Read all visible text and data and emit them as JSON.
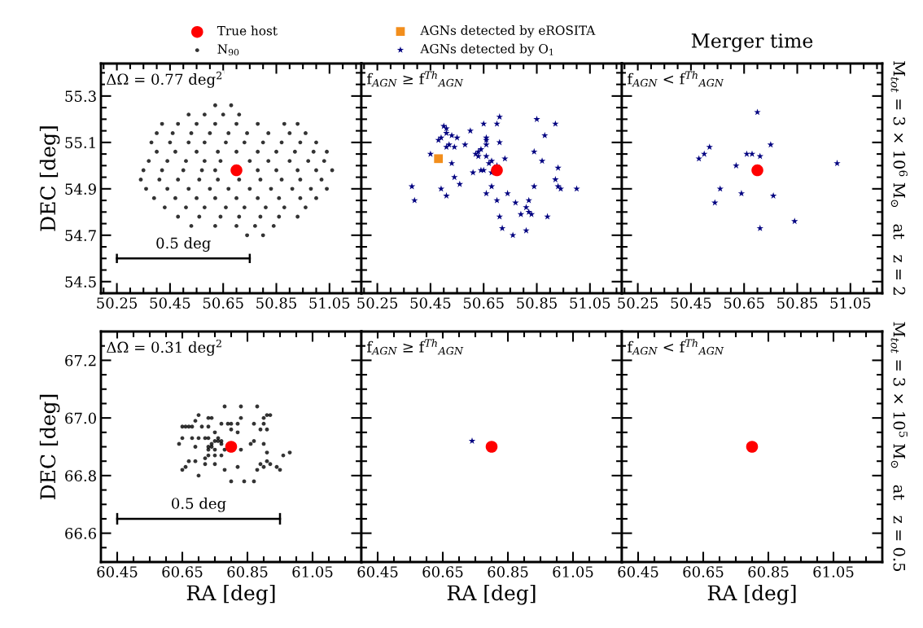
{
  "chart_data": [
    {
      "type": "scatter",
      "ylabel": "DEC [deg]",
      "legend": "top",
      "grid": false,
      "annotations": [
        "ΔΩ = 0.77 deg$^{2}$",
        {
          "text": "0.5 deg",
          "x": 50.5,
          "y": 54.6
        }
      ],
      "xlim": [
        50.19,
        51.17
      ],
      "ylim": [
        54.45,
        55.44
      ],
      "xticks": [
        50.25,
        50.45,
        50.65,
        50.85,
        51.05,
        {
          "value": 50.2,
          "label": null
        },
        {
          "value": 50.3,
          "label": null
        },
        {
          "value": 50.35,
          "label": null
        },
        {
          "value": 50.4,
          "label": null
        },
        {
          "value": 50.5,
          "label": null
        },
        {
          "value": 50.55,
          "label": null
        },
        {
          "value": 50.6,
          "label": null
        },
        {
          "value": 50.7,
          "label": null
        },
        {
          "value": 50.75,
          "label": null
        },
        {
          "value": 50.8,
          "label": null
        },
        {
          "value": 50.9,
          "label": null
        },
        {
          "value": 50.95,
          "label": null
        },
        {
          "value": 51.0,
          "label": null
        },
        {
          "value": 51.1,
          "label": null
        },
        {
          "value": 51.15,
          "label": null
        }
      ],
      "yticks": [
        54.5,
        54.7,
        54.9,
        55.1,
        55.3,
        {
          "value": 54.55,
          "label": null
        },
        {
          "value": 54.6,
          "label": null
        },
        {
          "value": 54.65,
          "label": null
        },
        {
          "value": 54.75,
          "label": null
        },
        {
          "value": 54.8,
          "label": null
        },
        {
          "value": 54.85,
          "label": null
        },
        {
          "value": 54.95,
          "label": null
        },
        {
          "value": 55.0,
          "label": null
        },
        {
          "value": 55.05,
          "label": null
        },
        {
          "value": 55.15,
          "label": null
        },
        {
          "value": 55.2,
          "label": null
        },
        {
          "value": 55.25,
          "label": null
        },
        {
          "value": 55.35,
          "label": null
        },
        {
          "value": 55.4,
          "label": null
        }
      ],
      "series": [
        {
          "name": "True host",
          "color": "#ff0000",
          "marker": "circle",
          "x": [
            50.7
          ],
          "values": [
            54.98
          ]
        },
        {
          "name": "N$_{90}$",
          "color": "#000000",
          "marker": "circle",
          "x": [
            50.62,
            50.68,
            50.52,
            50.58,
            50.65,
            50.71,
            50.42,
            50.48,
            50.55,
            50.62,
            50.7,
            50.78,
            50.88,
            50.93,
            50.4,
            50.46,
            50.53,
            50.6,
            50.67,
            50.74,
            50.82,
            50.9,
            50.96,
            50.38,
            50.45,
            50.52,
            50.58,
            50.66,
            50.73,
            50.8,
            50.87,
            50.94,
            51.0,
            50.4,
            50.47,
            50.55,
            50.63,
            50.7,
            50.78,
            50.85,
            50.92,
            50.99,
            51.04,
            50.37,
            50.44,
            50.51,
            50.58,
            50.64,
            50.75,
            50.82,
            50.9,
            50.97,
            51.03,
            50.35,
            50.42,
            50.5,
            50.57,
            50.62,
            50.78,
            50.85,
            50.93,
            51.0,
            51.06,
            50.34,
            50.41,
            50.48,
            50.56,
            50.63,
            50.71,
            50.79,
            50.87,
            50.94,
            51.02,
            50.36,
            50.44,
            50.52,
            50.6,
            50.67,
            50.75,
            50.83,
            50.91,
            50.98,
            51.04,
            50.39,
            50.47,
            50.55,
            50.62,
            50.7,
            50.78,
            50.86,
            50.94,
            51.0,
            50.43,
            50.51,
            50.58,
            50.66,
            50.73,
            50.81,
            50.88,
            50.96,
            50.48,
            50.56,
            50.64,
            50.71,
            50.79,
            50.86,
            50.93,
            50.53,
            50.62,
            50.7,
            50.77,
            50.84,
            50.74,
            50.8
          ],
          "values": [
            55.26,
            55.26,
            55.22,
            55.22,
            55.22,
            55.22,
            55.18,
            55.18,
            55.18,
            55.18,
            55.18,
            55.18,
            55.18,
            55.18,
            55.14,
            55.14,
            55.14,
            55.14,
            55.14,
            55.14,
            55.14,
            55.14,
            55.14,
            55.1,
            55.1,
            55.1,
            55.1,
            55.1,
            55.1,
            55.1,
            55.1,
            55.1,
            55.1,
            55.06,
            55.06,
            55.06,
            55.06,
            55.06,
            55.06,
            55.06,
            55.06,
            55.06,
            55.06,
            55.02,
            55.02,
            55.02,
            55.02,
            55.02,
            55.02,
            55.02,
            55.02,
            55.02,
            55.02,
            54.98,
            54.98,
            54.98,
            54.98,
            54.98,
            54.98,
            54.98,
            54.98,
            54.98,
            54.98,
            54.94,
            54.94,
            54.94,
            54.94,
            54.94,
            54.94,
            54.94,
            54.94,
            54.94,
            54.94,
            54.9,
            54.9,
            54.9,
            54.9,
            54.9,
            54.9,
            54.9,
            54.9,
            54.9,
            54.9,
            54.86,
            54.86,
            54.86,
            54.86,
            54.86,
            54.86,
            54.86,
            54.86,
            54.86,
            54.82,
            54.82,
            54.82,
            54.82,
            54.82,
            54.82,
            54.82,
            54.82,
            54.78,
            54.78,
            54.78,
            54.78,
            54.78,
            54.78,
            54.78,
            54.74,
            54.74,
            54.74,
            54.74,
            54.74,
            54.7,
            54.7
          ]
        },
        {
          "type": "line",
          "color": "#000000",
          "marker": "none",
          "x": [
            50.25,
            50.75
          ],
          "values": [
            54.6,
            54.6
          ],
          "errors": [
            0.02,
            0.02
          ]
        }
      ]
    },
    {
      "type": "scatter",
      "legend": "top",
      "grid": false,
      "tick_labels": "x",
      "annotations": [
        "f$_{AGN}$ ≥ f$^{Th}$$_{AGN}$"
      ],
      "xlim": [
        50.19,
        51.17
      ],
      "ylim": [
        54.45,
        55.44
      ],
      "xticks": [
        50.25,
        50.45,
        50.65,
        50.85,
        51.05,
        {
          "value": 50.2,
          "label": null
        },
        {
          "value": 50.3,
          "label": null
        },
        {
          "value": 50.35,
          "label": null
        },
        {
          "value": 50.4,
          "label": null
        },
        {
          "value": 50.5,
          "label": null
        },
        {
          "value": 50.55,
          "label": null
        },
        {
          "value": 50.6,
          "label": null
        },
        {
          "value": 50.7,
          "label": null
        },
        {
          "value": 50.75,
          "label": null
        },
        {
          "value": 50.8,
          "label": null
        },
        {
          "value": 50.9,
          "label": null
        },
        {
          "value": 50.95,
          "label": null
        },
        {
          "value": 51.0,
          "label": null
        },
        {
          "value": 51.1,
          "label": null
        },
        {
          "value": 51.15,
          "label": null
        }
      ],
      "yticks": [
        54.5,
        54.7,
        54.9,
        55.1,
        55.3,
        {
          "value": 54.55,
          "label": null
        },
        {
          "value": 54.6,
          "label": null
        },
        {
          "value": 54.65,
          "label": null
        },
        {
          "value": 54.75,
          "label": null
        },
        {
          "value": 54.8,
          "label": null
        },
        {
          "value": 54.85,
          "label": null
        },
        {
          "value": 54.95,
          "label": null
        },
        {
          "value": 55.0,
          "label": null
        },
        {
          "value": 55.05,
          "label": null
        },
        {
          "value": 55.15,
          "label": null
        },
        {
          "value": 55.2,
          "label": null
        },
        {
          "value": 55.25,
          "label": null
        },
        {
          "value": 55.35,
          "label": null
        },
        {
          "value": 55.4,
          "label": null
        }
      ],
      "series": [
        {
          "color": "#ff0000",
          "marker": "circle",
          "x": [
            50.7
          ],
          "values": [
            54.98
          ]
        },
        {
          "name": "AGNs detected by eROSITA",
          "color": "#f28e1c",
          "marker": "square",
          "x": [
            50.48
          ],
          "values": [
            55.03
          ]
        },
        {
          "name": "AGNs detected by O$_{1}$",
          "color": "#000080",
          "marker": "star",
          "x": [
            50.71,
            50.85,
            50.92,
            50.5,
            50.51,
            50.65,
            50.7,
            50.6,
            50.51,
            50.88,
            50.53,
            50.48,
            50.49,
            50.55,
            50.66,
            50.66,
            50.71,
            50.66,
            50.58,
            50.51,
            50.52,
            50.54,
            50.64,
            50.63,
            50.84,
            50.45,
            50.62,
            50.66,
            50.63,
            50.73,
            50.68,
            50.87,
            50.53,
            50.67,
            50.7,
            50.93,
            50.61,
            50.64,
            50.65,
            50.68,
            50.92,
            50.54,
            50.56,
            50.38,
            50.49,
            50.84,
            50.93,
            50.94,
            51.0,
            50.68,
            50.39,
            50.51,
            50.66,
            50.74,
            50.7,
            50.77,
            50.82,
            50.81,
            50.82,
            50.79,
            50.83,
            50.89,
            50.71,
            50.72,
            50.81,
            50.76
          ],
          "values": [
            55.21,
            55.2,
            55.18,
            55.17,
            55.16,
            55.18,
            55.18,
            55.15,
            55.14,
            55.13,
            55.13,
            55.11,
            55.12,
            55.12,
            55.12,
            55.11,
            55.1,
            55.09,
            55.09,
            55.08,
            55.09,
            55.08,
            55.07,
            55.06,
            55.06,
            55.05,
            55.05,
            55.04,
            55.04,
            55.03,
            55.02,
            55.02,
            55.01,
            55.01,
            55.0,
            54.99,
            54.97,
            54.98,
            54.98,
            54.97,
            54.94,
            54.95,
            54.92,
            54.91,
            54.9,
            54.91,
            54.91,
            54.9,
            54.9,
            54.91,
            54.85,
            54.87,
            54.88,
            54.88,
            54.85,
            54.84,
            54.85,
            54.82,
            54.8,
            54.79,
            54.79,
            54.78,
            54.78,
            54.73,
            54.72,
            54.7
          ]
        }
      ]
    },
    {
      "type": "scatter",
      "title": "Merger time",
      "grid": false,
      "tick_labels": "x",
      "annotations": [
        "f$_{AGN}$ < f$^{Th}$$_{AGN}$"
      ],
      "y2label": "M$_{tot}$ = 3 × 10$^{6}$ M$_{⊙}$   at   z = 2",
      "xlim": [
        50.19,
        51.17
      ],
      "ylim": [
        54.45,
        55.44
      ],
      "xticks": [
        50.25,
        50.45,
        50.65,
        50.85,
        51.05,
        {
          "value": 50.2,
          "label": null
        },
        {
          "value": 50.3,
          "label": null
        },
        {
          "value": 50.35,
          "label": null
        },
        {
          "value": 50.4,
          "label": null
        },
        {
          "value": 50.5,
          "label": null
        },
        {
          "value": 50.55,
          "label": null
        },
        {
          "value": 50.6,
          "label": null
        },
        {
          "value": 50.7,
          "label": null
        },
        {
          "value": 50.75,
          "label": null
        },
        {
          "value": 50.8,
          "label": null
        },
        {
          "value": 50.9,
          "label": null
        },
        {
          "value": 50.95,
          "label": null
        },
        {
          "value": 51.0,
          "label": null
        },
        {
          "value": 51.1,
          "label": null
        },
        {
          "value": 51.15,
          "label": null
        }
      ],
      "yticks": [
        54.5,
        54.7,
        54.9,
        55.1,
        55.3,
        {
          "value": 54.55,
          "label": null
        },
        {
          "value": 54.6,
          "label": null
        },
        {
          "value": 54.65,
          "label": null
        },
        {
          "value": 54.75,
          "label": null
        },
        {
          "value": 54.8,
          "label": null
        },
        {
          "value": 54.85,
          "label": null
        },
        {
          "value": 54.95,
          "label": null
        },
        {
          "value": 55.0,
          "label": null
        },
        {
          "value": 55.05,
          "label": null
        },
        {
          "value": 55.15,
          "label": null
        },
        {
          "value": 55.2,
          "label": null
        },
        {
          "value": 55.25,
          "label": null
        },
        {
          "value": 55.35,
          "label": null
        },
        {
          "value": 55.4,
          "label": null
        }
      ],
      "series": [
        {
          "color": "#ff0000",
          "marker": "circle",
          "x": [
            50.7
          ],
          "values": [
            54.98
          ]
        },
        {
          "color": "#000080",
          "marker": "star",
          "x": [
            50.7,
            50.52,
            50.5,
            50.48,
            50.66,
            50.68,
            50.71,
            50.75,
            50.62,
            51.0,
            50.56,
            50.64,
            50.76,
            50.54,
            50.84,
            50.71
          ],
          "values": [
            55.23,
            55.08,
            55.05,
            55.03,
            55.05,
            55.05,
            55.04,
            55.09,
            55.0,
            55.01,
            54.9,
            54.88,
            54.87,
            54.84,
            54.76,
            54.73
          ]
        }
      ]
    },
    {
      "type": "scatter",
      "xlabel": "RA [deg]",
      "ylabel": "DEC [deg]",
      "grid": false,
      "annotations": [
        "ΔΩ = 0.31 deg$^{2}$",
        {
          "text": "0.5 deg",
          "x": 60.7,
          "y": 66.65
        }
      ],
      "xlim": [
        60.4,
        61.2
      ],
      "ylim": [
        66.5,
        67.3
      ],
      "xticks": [
        60.45,
        60.65,
        60.85,
        61.05,
        {
          "value": 60.5,
          "label": null
        },
        {
          "value": 60.55,
          "label": null
        },
        {
          "value": 60.6,
          "label": null
        },
        {
          "value": 60.7,
          "label": null
        },
        {
          "value": 60.75,
          "label": null
        },
        {
          "value": 60.8,
          "label": null
        },
        {
          "value": 60.9,
          "label": null
        },
        {
          "value": 60.95,
          "label": null
        },
        {
          "value": 61.0,
          "label": null
        },
        {
          "value": 61.1,
          "label": null
        },
        {
          "value": 61.15,
          "label": null
        }
      ],
      "yticks": [
        66.6,
        66.8,
        {
          "value": 67.0,
          "label": "67.0"
        },
        67.2,
        {
          "value": 66.55,
          "label": null
        },
        {
          "value": 66.65,
          "label": null
        },
        {
          "value": 66.7,
          "label": null
        },
        {
          "value": 66.75,
          "label": null
        },
        {
          "value": 66.85,
          "label": null
        },
        {
          "value": 66.9,
          "label": null
        },
        {
          "value": 66.95,
          "label": null
        },
        {
          "value": 67.05,
          "label": null
        },
        {
          "value": 67.1,
          "label": null
        },
        {
          "value": 67.15,
          "label": null
        },
        {
          "value": 67.25,
          "label": null
        }
      ],
      "series": [
        {
          "color": "#ff0000",
          "marker": "circle",
          "x": [
            60.8
          ],
          "values": [
            66.9
          ]
        },
        {
          "color": "#000000",
          "marker": "circle",
          "x": [
            60.78,
            60.83,
            60.88,
            60.7,
            60.74,
            60.73,
            60.92,
            60.91,
            60.83,
            60.9,
            60.65,
            60.66,
            60.67,
            60.68,
            60.69,
            60.71,
            60.73,
            60.77,
            60.79,
            60.8,
            60.82,
            60.87,
            60.89,
            60.9,
            60.91,
            60.8,
            60.82,
            60.75,
            60.65,
            60.68,
            60.7,
            60.72,
            60.73,
            60.76,
            60.77,
            60.75,
            60.74,
            60.73,
            60.74,
            60.76,
            60.77,
            60.64,
            60.69,
            60.86,
            60.87,
            60.9,
            60.78,
            60.75,
            60.73,
            60.77,
            60.83,
            60.91,
            60.91,
            60.89,
            60.92,
            60.96,
            60.98,
            60.94,
            60.95,
            60.88,
            60.9,
            60.66,
            60.65,
            60.67,
            60.69,
            60.72,
            60.75,
            60.78,
            60.82,
            60.7,
            60.8,
            60.84,
            60.87,
            60.75,
            60.73,
            60.72
          ],
          "values": [
            67.04,
            67.04,
            67.04,
            67.01,
            67.0,
            67.0,
            67.01,
            67.01,
            67.0,
            67.0,
            66.97,
            66.97,
            66.97,
            66.97,
            66.99,
            66.97,
            66.97,
            66.98,
            66.98,
            66.98,
            66.98,
            66.98,
            66.96,
            66.98,
            66.96,
            66.96,
            66.95,
            66.95,
            66.93,
            66.93,
            66.93,
            66.93,
            66.93,
            66.93,
            66.92,
            66.92,
            66.91,
            66.9,
            66.9,
            66.92,
            66.91,
            66.91,
            66.9,
            66.91,
            66.92,
            66.91,
            66.89,
            66.89,
            66.89,
            66.87,
            66.89,
            66.88,
            66.85,
            66.84,
            66.84,
            66.87,
            66.88,
            66.83,
            66.82,
            66.82,
            66.83,
            66.83,
            66.82,
            66.85,
            66.85,
            66.84,
            66.84,
            66.82,
            66.83,
            66.8,
            66.78,
            66.78,
            66.78,
            66.87,
            66.87,
            66.86
          ]
        },
        {
          "type": "line",
          "color": "#000000",
          "marker": "none",
          "x": [
            60.45,
            60.95
          ],
          "values": [
            66.65,
            66.65
          ],
          "errors": [
            0.02,
            0.02
          ]
        }
      ]
    },
    {
      "type": "scatter",
      "xlabel": "RA [deg]",
      "grid": false,
      "tick_labels": "x",
      "annotations": [
        "f$_{AGN}$ ≥ f$^{Th}$$_{AGN}$"
      ],
      "xlim": [
        60.4,
        61.2
      ],
      "ylim": [
        66.5,
        67.3
      ],
      "xticks": [
        60.45,
        60.65,
        60.85,
        61.05,
        {
          "value": 60.5,
          "label": null
        },
        {
          "value": 60.55,
          "label": null
        },
        {
          "value": 60.6,
          "label": null
        },
        {
          "value": 60.7,
          "label": null
        },
        {
          "value": 60.75,
          "label": null
        },
        {
          "value": 60.8,
          "label": null
        },
        {
          "value": 60.9,
          "label": null
        },
        {
          "value": 60.95,
          "label": null
        },
        {
          "value": 61.0,
          "label": null
        },
        {
          "value": 61.1,
          "label": null
        },
        {
          "value": 61.15,
          "label": null
        }
      ],
      "yticks": [
        66.6,
        66.8,
        67.0,
        67.2,
        {
          "value": 66.55,
          "label": null
        },
        {
          "value": 66.65,
          "label": null
        },
        {
          "value": 66.7,
          "label": null
        },
        {
          "value": 66.75,
          "label": null
        },
        {
          "value": 66.85,
          "label": null
        },
        {
          "value": 66.9,
          "label": null
        },
        {
          "value": 66.95,
          "label": null
        },
        {
          "value": 67.05,
          "label": null
        },
        {
          "value": 67.1,
          "label": null
        },
        {
          "value": 67.15,
          "label": null
        },
        {
          "value": 67.25,
          "label": null
        }
      ],
      "series": [
        {
          "color": "#ff0000",
          "marker": "circle",
          "x": [
            60.8
          ],
          "values": [
            66.9
          ]
        },
        {
          "color": "#000080",
          "marker": "star",
          "x": [
            60.74
          ],
          "values": [
            66.92
          ]
        }
      ]
    },
    {
      "type": "scatter",
      "xlabel": "RA [deg]",
      "grid": false,
      "tick_labels": "x",
      "annotations": [
        "f$_{AGN}$ < f$^{Th}$$_{AGN}$"
      ],
      "y2label": "M$_{tot}$ = 3 × 10$^{5}$ M$_{⊙}$   at   z = 0.5",
      "xlim": [
        60.4,
        61.2
      ],
      "ylim": [
        66.5,
        67.3
      ],
      "xticks": [
        60.45,
        60.65,
        60.85,
        61.05,
        {
          "value": 60.5,
          "label": null
        },
        {
          "value": 60.55,
          "label": null
        },
        {
          "value": 60.6,
          "label": null
        },
        {
          "value": 60.7,
          "label": null
        },
        {
          "value": 60.75,
          "label": null
        },
        {
          "value": 60.8,
          "label": null
        },
        {
          "value": 60.9,
          "label": null
        },
        {
          "value": 60.95,
          "label": null
        },
        {
          "value": 61.0,
          "label": null
        },
        {
          "value": 61.1,
          "label": null
        },
        {
          "value": 61.15,
          "label": null
        }
      ],
      "yticks": [
        66.6,
        66.8,
        67.0,
        67.2,
        {
          "value": 66.55,
          "label": null
        },
        {
          "value": 66.65,
          "label": null
        },
        {
          "value": 66.7,
          "label": null
        },
        {
          "value": 66.75,
          "label": null
        },
        {
          "value": 66.85,
          "label": null
        },
        {
          "value": 66.9,
          "label": null
        },
        {
          "value": 66.95,
          "label": null
        },
        {
          "value": 67.05,
          "label": null
        },
        {
          "value": 67.1,
          "label": null
        },
        {
          "value": 67.15,
          "label": null
        },
        {
          "value": 67.25,
          "label": null
        }
      ],
      "series": [
        {
          "color": "#ff0000",
          "marker": "circle",
          "x": [
            60.8
          ],
          "values": [
            66.9
          ]
        }
      ]
    }
  ]
}
